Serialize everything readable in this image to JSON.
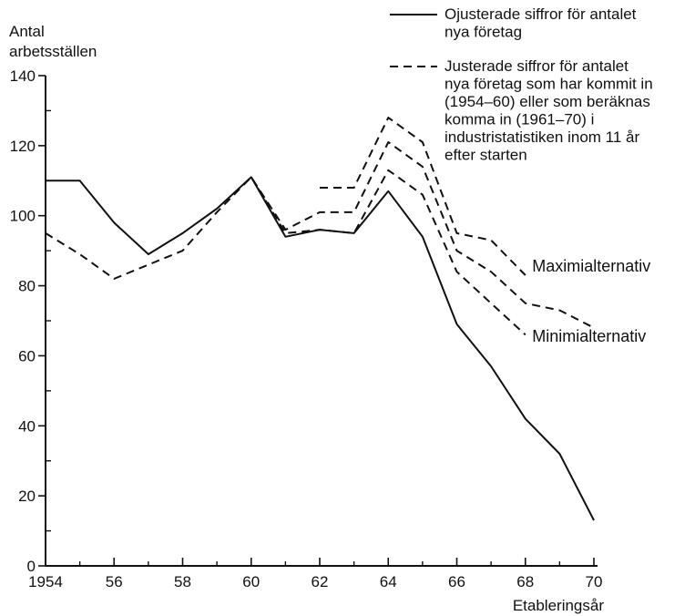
{
  "chart_data": {
    "type": "line",
    "ylabel_lines": [
      "Antal",
      "arbetsställen"
    ],
    "xlabel": "Etableringsår",
    "xlim": [
      1954,
      1970
    ],
    "ylim": [
      0,
      140
    ],
    "x_ticks": [
      {
        "value": 1954,
        "label": "1954"
      },
      {
        "value": 1956,
        "label": "56"
      },
      {
        "value": 1958,
        "label": "58"
      },
      {
        "value": 1960,
        "label": "60"
      },
      {
        "value": 1962,
        "label": "62"
      },
      {
        "value": 1964,
        "label": "64"
      },
      {
        "value": 1966,
        "label": "66"
      },
      {
        "value": 1968,
        "label": "68"
      },
      {
        "value": 1970,
        "label": "70"
      }
    ],
    "y_ticks": [
      {
        "value": 0,
        "label": "0"
      },
      {
        "value": 20,
        "label": "20"
      },
      {
        "value": 40,
        "label": "40"
      },
      {
        "value": 60,
        "label": "60"
      },
      {
        "value": 80,
        "label": "80"
      },
      {
        "value": 100,
        "label": "100"
      },
      {
        "value": 120,
        "label": "120"
      },
      {
        "value": 140,
        "label": "140"
      }
    ],
    "series": [
      {
        "style": "solid",
        "x": [
          1954,
          1955,
          1956,
          1957,
          1958,
          1959,
          1960,
          1961,
          1962,
          1963,
          1964,
          1965,
          1966,
          1967,
          1968,
          1969,
          1970
        ],
        "y": [
          110,
          110,
          98,
          89,
          95,
          102,
          111,
          94,
          96,
          95,
          107,
          94,
          69,
          57,
          42,
          32,
          13
        ]
      },
      {
        "style": "dashed",
        "x": [
          1954,
          1955,
          1956,
          1957,
          1958,
          1959,
          1960,
          1961,
          1962,
          1963,
          1964,
          1965,
          1966,
          1967,
          1968,
          1969,
          1970
        ],
        "y": [
          95,
          89,
          82,
          86,
          90,
          101,
          111,
          96,
          101,
          101,
          121,
          114,
          90,
          84,
          75,
          73,
          68
        ]
      },
      {
        "style": "dashed",
        "x": [
          1962,
          1963,
          1964,
          1965,
          1966,
          1967,
          1968
        ],
        "y": [
          108,
          108,
          128,
          121,
          95,
          93,
          83
        ]
      },
      {
        "style": "dashed",
        "x": [
          1960,
          1961,
          1962,
          1963,
          1964,
          1965,
          1966,
          1967,
          1968
        ],
        "y": [
          111,
          95,
          96,
          95,
          113,
          106,
          84,
          75,
          66
        ]
      }
    ],
    "legend": [
      {
        "style": "solid",
        "lines": [
          "Ojusterade siffror för antalet",
          "nya företag"
        ]
      },
      {
        "style": "dashed",
        "lines": [
          "Justerade siffror för antalet",
          "nya företag som har kommit in",
          "(1954–60) eller som beräknas",
          "komma in (1961–70) i",
          "industristatistiken inom 11 år",
          "efter starten"
        ]
      }
    ],
    "legend_position": "top-right",
    "annotations": [
      {
        "text": "Maximialternativ",
        "x": 1968.2,
        "y": 84
      },
      {
        "text": "Minimialternativ",
        "x": 1968.2,
        "y": 64
      }
    ],
    "grid": false
  }
}
